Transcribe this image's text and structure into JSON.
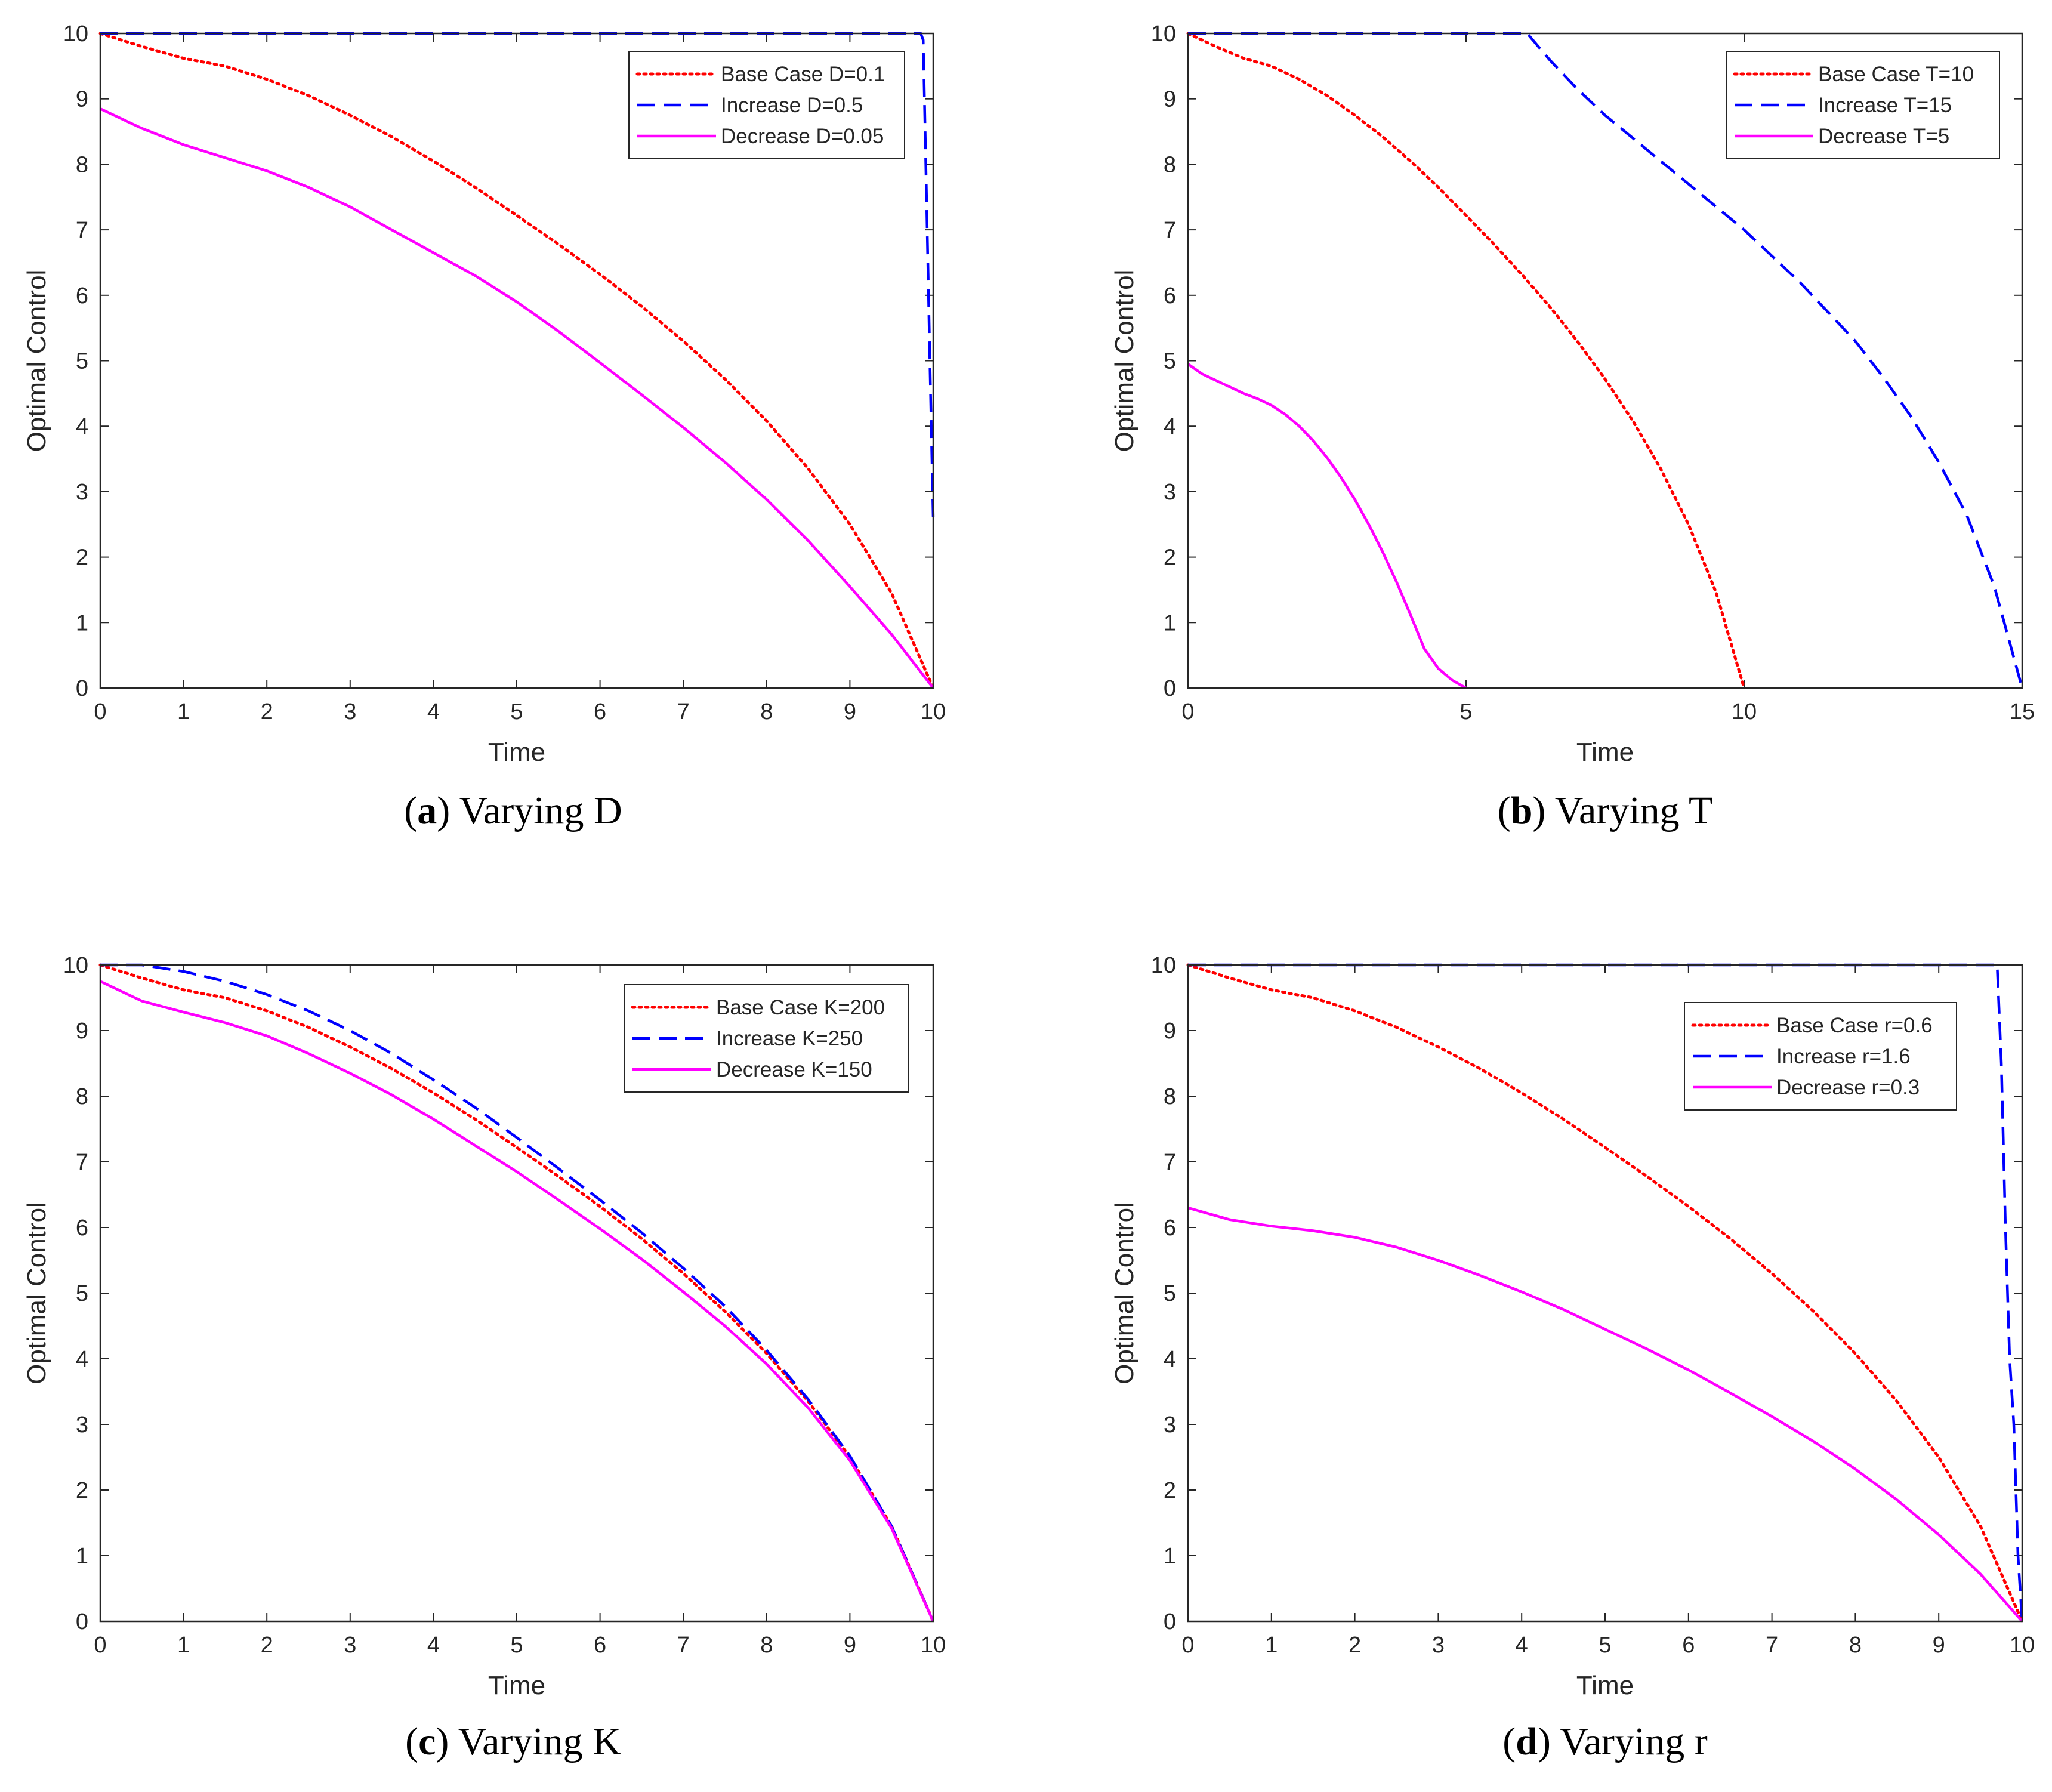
{
  "chart_data": [
    {
      "type": "line",
      "panel": "a",
      "caption": "Varying D",
      "xlabel": "Time",
      "ylabel": "Optimal Control",
      "xlim": [
        0,
        10
      ],
      "ylim": [
        0,
        10
      ],
      "xticks": [
        0,
        1,
        2,
        3,
        4,
        5,
        6,
        7,
        8,
        9,
        10
      ],
      "yticks": [
        0,
        1,
        2,
        3,
        4,
        5,
        6,
        7,
        8,
        9,
        10
      ],
      "legend_position": "top-right",
      "series": [
        {
          "name": "Base Case D=0.1",
          "color": "#ff0000",
          "style": "dotted",
          "x": [
            0,
            0.5,
            1,
            1.5,
            2,
            2.5,
            3,
            3.5,
            4,
            4.5,
            5,
            5.5,
            6,
            6.5,
            7,
            7.5,
            8,
            8.5,
            9,
            9.5,
            10
          ],
          "y": [
            10,
            9.8,
            9.62,
            9.5,
            9.3,
            9.05,
            8.75,
            8.42,
            8.05,
            7.65,
            7.22,
            6.78,
            6.32,
            5.83,
            5.3,
            4.72,
            4.08,
            3.35,
            2.5,
            1.45,
            0
          ]
        },
        {
          "name": "Increase D=0.5",
          "color": "#0000ff",
          "style": "dashed",
          "x": [
            0,
            9.85,
            9.88,
            9.92,
            9.96,
            10
          ],
          "y": [
            10,
            10,
            9.9,
            7.5,
            5,
            2.6
          ]
        },
        {
          "name": "Decrease D=0.05",
          "color": "#ff00ff",
          "style": "solid",
          "x": [
            0,
            0.5,
            1,
            1.5,
            2,
            2.5,
            3,
            3.5,
            4,
            4.5,
            5,
            5.5,
            6,
            6.5,
            7,
            7.5,
            8,
            8.5,
            9,
            9.5,
            10
          ],
          "y": [
            8.85,
            8.55,
            8.3,
            8.1,
            7.9,
            7.65,
            7.35,
            7.0,
            6.65,
            6.3,
            5.9,
            5.45,
            4.97,
            4.48,
            3.98,
            3.45,
            2.88,
            2.25,
            1.55,
            0.82,
            0
          ]
        }
      ]
    },
    {
      "type": "line",
      "panel": "b",
      "caption": "Varying T",
      "xlabel": "Time",
      "ylabel": "Optimal Control",
      "xlim": [
        0,
        15
      ],
      "ylim": [
        0,
        10
      ],
      "xticks": [
        0,
        5,
        10,
        15
      ],
      "yticks": [
        0,
        1,
        2,
        3,
        4,
        5,
        6,
        7,
        8,
        9,
        10
      ],
      "legend_position": "top-right",
      "series": [
        {
          "name": "Base Case T=10",
          "color": "#ff0000",
          "style": "dotted",
          "x": [
            0,
            0.5,
            1,
            1.5,
            2,
            2.5,
            3,
            3.5,
            4,
            4.5,
            5,
            5.5,
            6,
            6.5,
            7,
            7.5,
            8,
            8.5,
            9,
            9.5,
            10
          ],
          "y": [
            10,
            9.8,
            9.62,
            9.5,
            9.3,
            9.05,
            8.75,
            8.42,
            8.05,
            7.65,
            7.22,
            6.78,
            6.32,
            5.83,
            5.3,
            4.72,
            4.08,
            3.35,
            2.5,
            1.45,
            0
          ]
        },
        {
          "name": "Increase T=15",
          "color": "#0000ff",
          "style": "dashed",
          "x": [
            0,
            6.1,
            6.5,
            7,
            7.5,
            8,
            8.5,
            9,
            9.5,
            10,
            10.5,
            11,
            11.5,
            12,
            12.5,
            13,
            13.5,
            14,
            14.5,
            15
          ],
          "y": [
            10,
            10,
            9.6,
            9.15,
            8.75,
            8.4,
            8.05,
            7.7,
            7.35,
            7.0,
            6.6,
            6.2,
            5.75,
            5.3,
            4.75,
            4.15,
            3.45,
            2.65,
            1.55,
            0
          ]
        },
        {
          "name": "Decrease T=5",
          "color": "#ff00ff",
          "style": "solid",
          "x": [
            0,
            0.25,
            0.5,
            0.75,
            1,
            1.25,
            1.5,
            1.75,
            2,
            2.25,
            2.5,
            2.75,
            3,
            3.25,
            3.5,
            3.75,
            4,
            4.25,
            4.5,
            4.75,
            5
          ],
          "y": [
            4.95,
            4.8,
            4.7,
            4.6,
            4.5,
            4.42,
            4.32,
            4.18,
            4.0,
            3.78,
            3.52,
            3.22,
            2.88,
            2.5,
            2.08,
            1.62,
            1.12,
            0.6,
            0.3,
            0.12,
            0
          ]
        }
      ]
    },
    {
      "type": "line",
      "panel": "c",
      "caption": "Varying K",
      "xlabel": "Time",
      "ylabel": "Optimal Control",
      "xlim": [
        0,
        10
      ],
      "ylim": [
        0,
        10
      ],
      "xticks": [
        0,
        1,
        2,
        3,
        4,
        5,
        6,
        7,
        8,
        9,
        10
      ],
      "yticks": [
        0,
        1,
        2,
        3,
        4,
        5,
        6,
        7,
        8,
        9,
        10
      ],
      "legend_position": "top-right",
      "series": [
        {
          "name": "Base Case K=200",
          "color": "#ff0000",
          "style": "dotted",
          "x": [
            0,
            0.5,
            1,
            1.5,
            2,
            2.5,
            3,
            3.5,
            4,
            4.5,
            5,
            5.5,
            6,
            6.5,
            7,
            7.5,
            8,
            8.5,
            9,
            9.5,
            10
          ],
          "y": [
            10,
            9.8,
            9.62,
            9.5,
            9.3,
            9.05,
            8.75,
            8.42,
            8.05,
            7.65,
            7.22,
            6.78,
            6.32,
            5.83,
            5.3,
            4.72,
            4.08,
            3.35,
            2.5,
            1.45,
            0
          ]
        },
        {
          "name": "Increase K=250",
          "color": "#0000ff",
          "style": "dashed",
          "x": [
            0,
            0.5,
            1,
            1.5,
            2,
            2.5,
            3,
            3.5,
            4,
            4.5,
            5,
            5.5,
            6,
            6.5,
            7,
            7.5,
            8,
            8.5,
            9,
            9.5,
            10
          ],
          "y": [
            10.0,
            10.0,
            9.9,
            9.75,
            9.55,
            9.3,
            9.0,
            8.65,
            8.25,
            7.83,
            7.37,
            6.9,
            6.42,
            5.92,
            5.38,
            4.8,
            4.13,
            3.38,
            2.52,
            1.45,
            0
          ]
        },
        {
          "name": "Decrease K=150",
          "color": "#ff00ff",
          "style": "solid",
          "x": [
            0,
            0.5,
            1,
            1.5,
            2,
            2.5,
            3,
            3.5,
            4,
            4.5,
            5,
            5.5,
            6,
            6.5,
            7,
            7.5,
            8,
            8.5,
            9,
            9.5,
            10
          ],
          "y": [
            9.75,
            9.45,
            9.28,
            9.12,
            8.92,
            8.65,
            8.35,
            8.02,
            7.65,
            7.25,
            6.85,
            6.42,
            5.98,
            5.52,
            5.02,
            4.5,
            3.92,
            3.25,
            2.45,
            1.42,
            0
          ]
        }
      ]
    },
    {
      "type": "line",
      "panel": "d",
      "caption": "Varying r",
      "xlabel": "Time",
      "ylabel": "Optimal Control",
      "xlim": [
        0,
        10
      ],
      "ylim": [
        0,
        10
      ],
      "xticks": [
        0,
        1,
        2,
        3,
        4,
        5,
        6,
        7,
        8,
        9,
        10
      ],
      "yticks": [
        0,
        1,
        2,
        3,
        4,
        5,
        6,
        7,
        8,
        9,
        10
      ],
      "legend_position": "top-right",
      "series": [
        {
          "name": "Base Case r=0.6",
          "color": "#ff0000",
          "style": "dotted",
          "x": [
            0,
            0.5,
            1,
            1.5,
            2,
            2.5,
            3,
            3.5,
            4,
            4.5,
            5,
            5.5,
            6,
            6.5,
            7,
            7.5,
            8,
            8.5,
            9,
            9.5,
            10
          ],
          "y": [
            10,
            9.8,
            9.62,
            9.5,
            9.3,
            9.05,
            8.75,
            8.42,
            8.05,
            7.65,
            7.22,
            6.78,
            6.32,
            5.83,
            5.3,
            4.72,
            4.08,
            3.35,
            2.5,
            1.45,
            0
          ]
        },
        {
          "name": "Increase r=1.6",
          "color": "#0000ff",
          "style": "dashed",
          "x": [
            0,
            9.7,
            9.75,
            9.8,
            9.85,
            9.9,
            9.95,
            10
          ],
          "y": [
            10,
            10,
            8.5,
            6.0,
            4.0,
            3.0,
            1.0,
            0
          ]
        },
        {
          "name": "Decrease r=0.3",
          "color": "#ff00ff",
          "style": "solid",
          "x": [
            0,
            0.5,
            1,
            1.5,
            2,
            2.5,
            3,
            3.5,
            4,
            4.5,
            5,
            5.5,
            6,
            6.5,
            7,
            7.5,
            8,
            8.5,
            9,
            9.5,
            10
          ],
          "y": [
            6.3,
            6.12,
            6.02,
            5.95,
            5.85,
            5.7,
            5.5,
            5.27,
            5.02,
            4.75,
            4.45,
            4.15,
            3.83,
            3.48,
            3.12,
            2.74,
            2.32,
            1.85,
            1.32,
            0.72,
            0
          ]
        }
      ]
    }
  ]
}
